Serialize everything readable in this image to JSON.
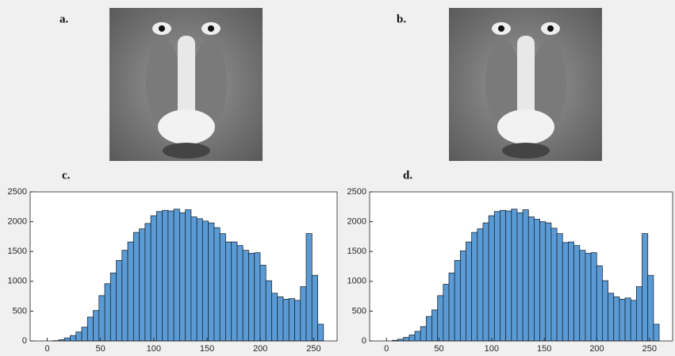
{
  "images": [
    {
      "label": "a."
    },
    {
      "label": "b."
    }
  ],
  "chart_data": [
    {
      "type": "histogram",
      "label": "c.",
      "color": "#5b9bd5",
      "bins": [
        0,
        5.4,
        10.8,
        16.2,
        21.6,
        27,
        32.4,
        37.8,
        43.2,
        48.6,
        54,
        59.4,
        64.8,
        70.2,
        75.6,
        81,
        86.4,
        91.8,
        97.2,
        102.6,
        108,
        113.4,
        118.8,
        124.2,
        129.6,
        135,
        140.4,
        145.8,
        151.2,
        156.6,
        162,
        167.4,
        172.8,
        178.2,
        183.6,
        189,
        194.4,
        199.8,
        205.2,
        210.6,
        216,
        221.4,
        226.8,
        232.2,
        237.6,
        243,
        248.4,
        253.8,
        259.2
      ],
      "values": [
        0,
        5,
        20,
        50,
        90,
        150,
        230,
        400,
        510,
        760,
        960,
        1140,
        1350,
        1520,
        1660,
        1820,
        1880,
        1970,
        2100,
        2170,
        2190,
        2180,
        2210,
        2150,
        2200,
        2080,
        2050,
        2010,
        1980,
        1900,
        1800,
        1660,
        1660,
        1600,
        1520,
        1470,
        1480,
        1270,
        1010,
        800,
        740,
        700,
        710,
        680,
        910,
        1800,
        1100,
        280
      ],
      "xlim": [
        -16,
        272
      ],
      "ylim": [
        0,
        2500
      ],
      "xticks": [
        0,
        50,
        100,
        150,
        200,
        250
      ],
      "yticks": [
        0,
        500,
        1000,
        1500,
        2000,
        2500
      ]
    },
    {
      "type": "histogram",
      "label": "d.",
      "color": "#5b9bd5",
      "bins": [
        0,
        5.4,
        10.8,
        16.2,
        21.6,
        27,
        32.4,
        37.8,
        43.2,
        48.6,
        54,
        59.4,
        64.8,
        70.2,
        75.6,
        81,
        86.4,
        91.8,
        97.2,
        102.6,
        108,
        113.4,
        118.8,
        124.2,
        129.6,
        135,
        140.4,
        145.8,
        151.2,
        156.6,
        162,
        167.4,
        172.8,
        178.2,
        183.6,
        189,
        194.4,
        199.8,
        205.2,
        210.6,
        216,
        221.4,
        226.8,
        232.2,
        237.6,
        243,
        248.4,
        253.8,
        259.2
      ],
      "values": [
        0,
        10,
        30,
        60,
        100,
        160,
        240,
        410,
        520,
        760,
        950,
        1140,
        1350,
        1510,
        1660,
        1820,
        1880,
        1980,
        2100,
        2170,
        2190,
        2180,
        2210,
        2150,
        2200,
        2080,
        2040,
        2000,
        1980,
        1890,
        1800,
        1650,
        1660,
        1600,
        1520,
        1470,
        1480,
        1260,
        1010,
        800,
        740,
        700,
        720,
        680,
        910,
        1800,
        1100,
        280
      ],
      "xlim": [
        -16,
        272
      ],
      "ylim": [
        0,
        2500
      ],
      "xticks": [
        0,
        50,
        100,
        150,
        200,
        250
      ],
      "yticks": [
        0,
        500,
        1000,
        1500,
        2000,
        2500
      ]
    }
  ]
}
